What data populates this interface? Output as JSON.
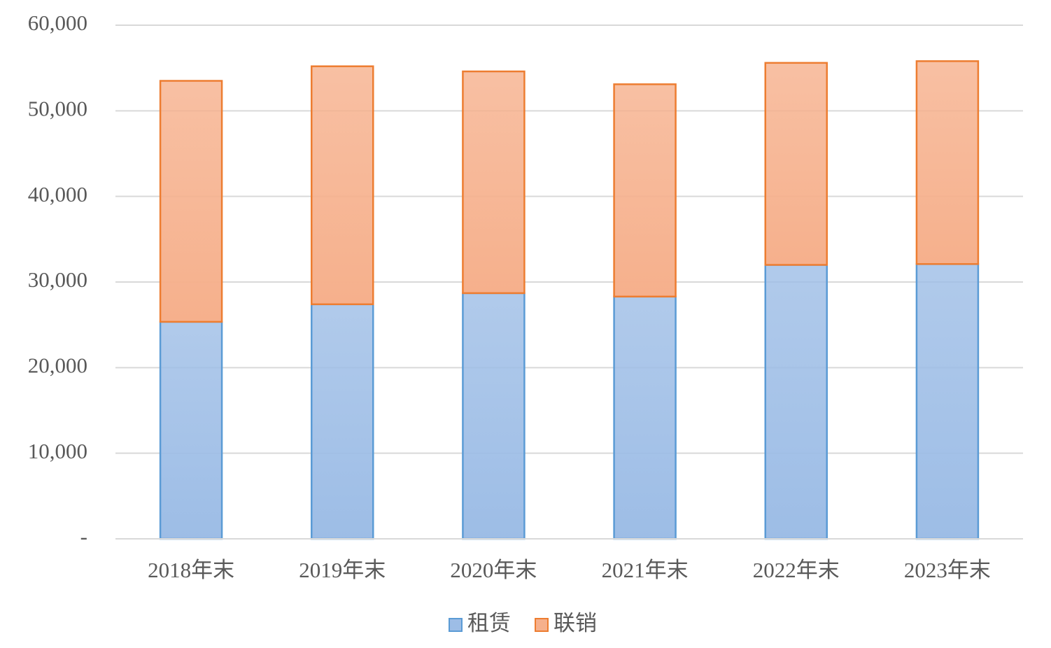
{
  "chart_data": {
    "type": "stacked_bar",
    "categories": [
      "2018年末",
      "2019年末",
      "2020年末",
      "2021年末",
      "2022年末",
      "2023年末"
    ],
    "series": [
      {
        "name": "租赁",
        "color": "#9dbde6",
        "edge_color": "#5b9bd5",
        "values": [
          25350,
          27400,
          28700,
          28300,
          32000,
          32100
        ]
      },
      {
        "name": "联销",
        "color": "#f6b08c",
        "edge_color": "#ed7d31",
        "values": [
          28150,
          27800,
          25900,
          24800,
          23600,
          23700
        ]
      }
    ],
    "ylim": [
      0,
      60000
    ],
    "yticks": [
      {
        "value": 0,
        "label": "-"
      },
      {
        "value": 10000,
        "label": "10,000"
      },
      {
        "value": 20000,
        "label": "20,000"
      },
      {
        "value": 30000,
        "label": "30,000"
      },
      {
        "value": 40000,
        "label": "40,000"
      },
      {
        "value": 50000,
        "label": "50,000"
      },
      {
        "value": 60000,
        "label": "60,000"
      }
    ],
    "grid": true,
    "legend": "bottom"
  }
}
